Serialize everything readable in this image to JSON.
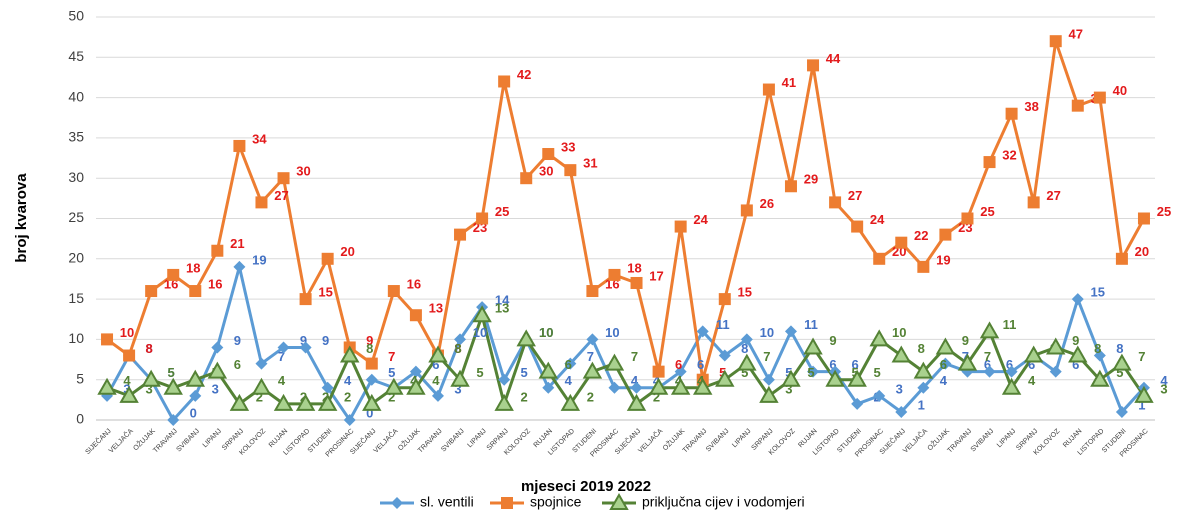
{
  "chart_data": {
    "type": "line",
    "y_label": "broj kvarova",
    "x_label": "mjeseci 2019 2022",
    "categories": [
      "SIJEČANJ",
      "VELJAČA",
      "OŽUJAK",
      "TRAVANJ",
      "SVIBANJ",
      "LIPANJ",
      "SRPANJ",
      "KOLOVOZ",
      "RUJAN",
      "LISTOPAD",
      "STUDENI",
      "PROSINAC",
      "SIJEČANJ",
      "VELJAČA",
      "OŽUJAK",
      "TRAVANJ",
      "SVIBANJ",
      "LIPANJ",
      "SRPANJ",
      "KOLOVOZ",
      "RUJAN",
      "LISTOPAD",
      "STUDENI",
      "PROSINAC",
      "SIJEČANJ",
      "VELJAČA",
      "OŽUJAK",
      "TRAVANJ",
      "SVIBANJ",
      "LIPANJ",
      "SRPANJ",
      "KOLOVOZ",
      "RUJAN",
      "LISTOPAD",
      "STUDENI",
      "PROSINAC",
      "SIJEČANJ",
      "VELJAČA",
      "OŽUJAK",
      "TRAVANJ",
      "SVIBANJ",
      "LIPANJ",
      "SRPANJ",
      "KOLOVOZ",
      "RUJAN",
      "LISTOPAD",
      "STUDENI",
      "PROSINAC"
    ],
    "series": [
      {
        "name": "sl. ventili",
        "color": "#5b9bd5",
        "label_color": "#4472c4",
        "marker": "diamond",
        "values": [
          3,
          8,
          5,
          0,
          3,
          9,
          19,
          7,
          9,
          9,
          4,
          0,
          5,
          4,
          6,
          3,
          10,
          14,
          5,
          10,
          4,
          7,
          10,
          4,
          4,
          4,
          6,
          11,
          8,
          10,
          5,
          11,
          6,
          6,
          2,
          3,
          1,
          4,
          7,
          6,
          6,
          6,
          8,
          6,
          15,
          8,
          1,
          4
        ]
      },
      {
        "name": "spojnice",
        "color": "#ed7d31",
        "label_color": "#e31a1c",
        "marker": "square",
        "values": [
          10,
          8,
          16,
          18,
          16,
          21,
          34,
          27,
          30,
          15,
          20,
          9,
          7,
          16,
          13,
          8,
          23,
          25,
          42,
          30,
          33,
          31,
          16,
          18,
          17,
          6,
          24,
          5,
          15,
          26,
          41,
          29,
          44,
          27,
          24,
          20,
          22,
          19,
          23,
          25,
          32,
          38,
          27,
          47,
          39,
          40,
          20,
          25
        ]
      },
      {
        "name": "priključna cijev i vodomjeri",
        "color": "#548235",
        "label_color": "#548235",
        "marker": "triangle",
        "values": [
          4,
          3,
          5,
          4,
          5,
          6,
          2,
          4,
          2,
          2,
          2,
          8,
          2,
          4,
          4,
          8,
          5,
          13,
          2,
          10,
          6,
          2,
          6,
          7,
          2,
          4,
          4,
          4,
          5,
          7,
          3,
          5,
          9,
          5,
          5,
          10,
          8,
          6,
          9,
          7,
          11,
          4,
          8,
          9,
          8,
          5,
          7,
          3
        ]
      }
    ],
    "ylim": [
      0,
      50
    ],
    "yticks": [
      0,
      5,
      10,
      15,
      20,
      25,
      30,
      35,
      40,
      45,
      50
    ],
    "grid": true,
    "legend": "bottom"
  }
}
